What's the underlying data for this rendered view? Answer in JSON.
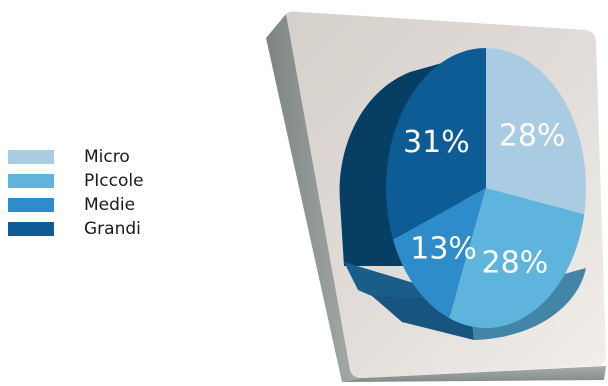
{
  "chart_data": {
    "type": "pie",
    "title": "",
    "series": [
      {
        "name": "Micro",
        "value": 28,
        "label": "28%",
        "color": "#a9cce3"
      },
      {
        "name": "PIccole",
        "value": 28,
        "label": "28%",
        "color": "#5fb4de"
      },
      {
        "name": "Medie",
        "value": 13,
        "label": "13%",
        "color": "#2e8cca"
      },
      {
        "name": "Grandi",
        "value": 31,
        "label": "31%",
        "color": "#0d5c95"
      }
    ],
    "legend": {
      "placement": "left"
    },
    "style": "3d-pie-on-tilted-panel"
  }
}
